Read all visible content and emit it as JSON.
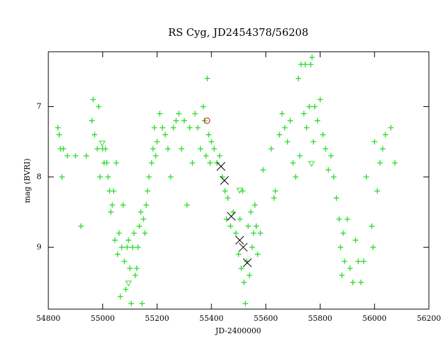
{
  "chart_data": {
    "type": "scatter",
    "title": "RS Cyg, JD2454378/56208",
    "x_label": "JD-2400000",
    "y_label": "mag (BVRI)",
    "xlim": [
      54800,
      56200
    ],
    "xticks": [
      54800,
      55000,
      55200,
      55400,
      55600,
      55800,
      56000,
      56200
    ],
    "ylim": [
      9.88,
      6.22
    ],
    "yticks": [
      7,
      8,
      9
    ],
    "series": [
      {
        "marker": "plus",
        "color": "#33dd33",
        "x": [
          54835,
          54840,
          54845,
          54855,
          54850,
          54870,
          54900,
          54920,
          54940,
          54960,
          54965,
          54970,
          54980,
          54985,
          54990,
          55000,
          55005,
          55010,
          55015,
          55020,
          55025,
          55030,
          55035,
          55040,
          55045,
          55050,
          55055,
          55060,
          55065,
          55070,
          55075,
          55080,
          55085,
          55090,
          55095,
          55100,
          55105,
          55110,
          55115,
          55120,
          55125,
          55130,
          55135,
          55140,
          55145,
          55150,
          55155,
          55160,
          55165,
          55170,
          55180,
          55185,
          55190,
          55195,
          55200,
          55210,
          55220,
          55230,
          55240,
          55250,
          55260,
          55270,
          55280,
          55290,
          55300,
          55310,
          55320,
          55330,
          55340,
          55350,
          55360,
          55370,
          55375,
          55380,
          55385,
          55390,
          55395,
          55400,
          55410,
          55420,
          55430,
          55440,
          55450,
          55455,
          55460,
          55470,
          55480,
          55490,
          55500,
          55505,
          55510,
          55515,
          55520,
          55525,
          55530,
          55535,
          55540,
          55545,
          55550,
          55555,
          55560,
          55565,
          55570,
          55580,
          55590,
          55620,
          55630,
          55635,
          55650,
          55660,
          55670,
          55680,
          55690,
          55700,
          55710,
          55720,
          55725,
          55730,
          55740,
          55745,
          55750,
          55760,
          55765,
          55770,
          55775,
          55780,
          55790,
          55800,
          55810,
          55820,
          55830,
          55840,
          55850,
          55860,
          55870,
          55875,
          55880,
          55885,
          55890,
          55900,
          55910,
          55920,
          55930,
          55940,
          55950,
          55960,
          55970,
          55990,
          55995,
          56000,
          56010,
          56020,
          56030,
          56040,
          56060,
          56075
        ],
        "values": [
          7.3,
          7.4,
          7.6,
          7.6,
          8.0,
          7.7,
          7.7,
          8.7,
          7.7,
          7.2,
          6.9,
          7.4,
          7.6,
          7.0,
          8.0,
          7.6,
          7.8,
          7.6,
          7.8,
          8.0,
          8.2,
          8.5,
          8.4,
          8.2,
          8.9,
          7.8,
          9.1,
          8.8,
          9.7,
          9.0,
          8.4,
          9.2,
          9.6,
          9.0,
          8.9,
          9.3,
          9.8,
          9.0,
          8.8,
          9.4,
          9.3,
          9.0,
          8.7,
          8.5,
          9.8,
          8.6,
          8.8,
          8.4,
          8.2,
          8.0,
          7.8,
          7.6,
          7.3,
          7.7,
          7.5,
          7.1,
          7.3,
          7.4,
          7.6,
          8.0,
          7.3,
          7.2,
          7.1,
          7.6,
          7.2,
          8.4,
          7.3,
          7.8,
          7.1,
          7.3,
          7.6,
          7.0,
          7.2,
          7.7,
          6.6,
          7.4,
          7.8,
          7.5,
          7.6,
          7.8,
          7.7,
          8.0,
          8.2,
          8.6,
          8.3,
          8.7,
          8.5,
          8.8,
          9.1,
          8.6,
          9.3,
          8.2,
          9.5,
          9.8,
          9.2,
          8.7,
          9.4,
          8.5,
          9.0,
          8.8,
          8.4,
          8.7,
          9.1,
          8.8,
          7.9,
          7.6,
          8.3,
          8.2,
          7.4,
          7.1,
          7.3,
          7.5,
          7.2,
          7.8,
          8.0,
          6.6,
          7.7,
          6.4,
          7.1,
          6.4,
          7.3,
          7.0,
          6.4,
          6.3,
          7.5,
          7.0,
          7.2,
          6.9,
          7.4,
          7.6,
          7.9,
          7.7,
          8.0,
          8.3,
          8.6,
          9.0,
          9.4,
          8.8,
          9.2,
          8.6,
          9.3,
          9.5,
          8.9,
          9.2,
          9.5,
          9.2,
          8.0,
          8.7,
          9.0,
          7.5,
          8.2,
          7.8,
          7.6,
          7.4,
          7.3,
          7.8
        ]
      },
      {
        "marker": "triangle-down",
        "color": "#33dd33",
        "x": [
          54998,
          55095,
          55504,
          55768
        ],
        "values": [
          7.52,
          9.51,
          8.19,
          7.81
        ]
      },
      {
        "marker": "x",
        "color": "#000000",
        "x": [
          55435,
          55448,
          55473,
          55504,
          55517,
          55532
        ],
        "values": [
          7.85,
          8.05,
          8.56,
          8.9,
          9.0,
          9.22
        ]
      },
      {
        "marker": "circle",
        "color": "#cc0000",
        "x": [
          55384
        ],
        "values": [
          7.2
        ]
      }
    ]
  }
}
